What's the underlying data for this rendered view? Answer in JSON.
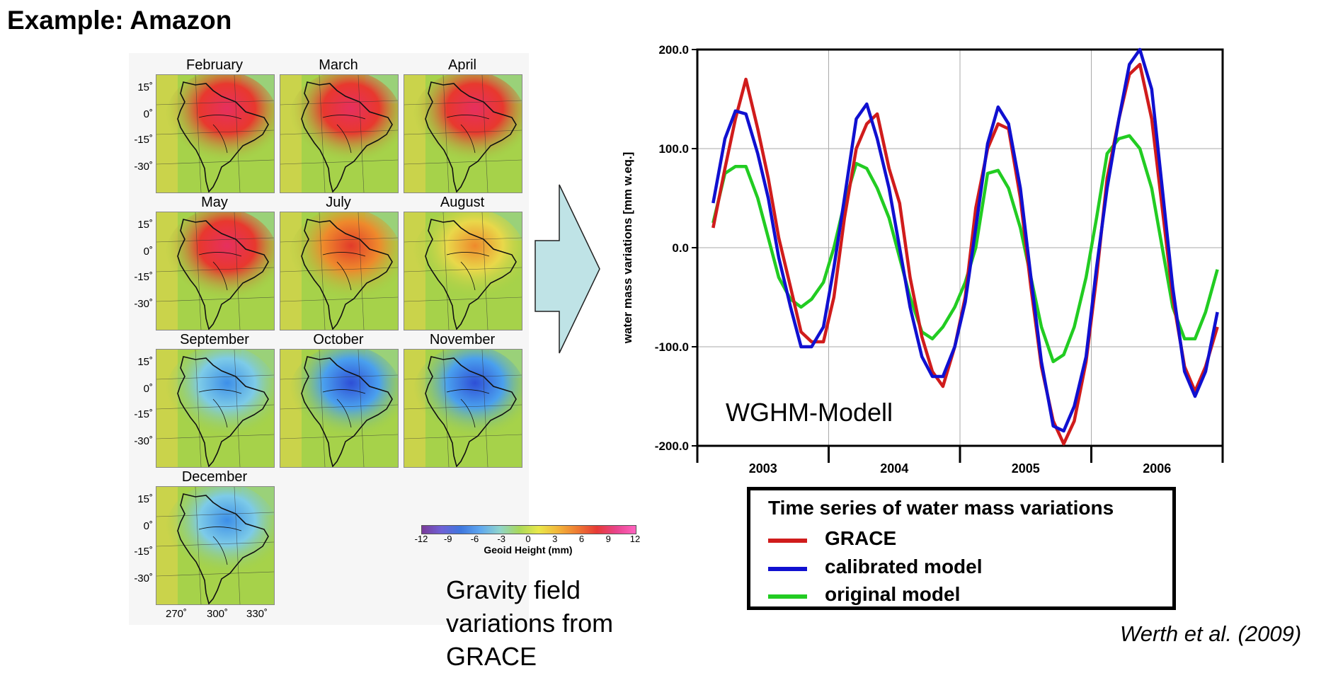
{
  "slide": {
    "title": "Example: Amazon",
    "citation": "Werth et al. (2009)"
  },
  "maps": {
    "months": [
      "February",
      "March",
      "April",
      "May",
      "July",
      "August",
      "September",
      "October",
      "November",
      "December"
    ],
    "anomaly_levels": [
      0.85,
      0.95,
      1.0,
      0.95,
      0.55,
      0.2,
      -0.55,
      -0.95,
      -1.0,
      -0.55
    ],
    "lat_labels": [
      "15˚",
      "0˚",
      "-15˚",
      "-30˚"
    ],
    "lon_labels": [
      "270˚",
      "300˚",
      "330˚"
    ],
    "colorbar": {
      "ticks": [
        "-12",
        "-9",
        "-6",
        "-3",
        "0",
        "3",
        "6",
        "9",
        "12"
      ],
      "title": "Geoid Height (mm)"
    },
    "caption": "Gravity field variations from GRACE"
  },
  "chart_data": {
    "type": "line",
    "title": "",
    "ylabel": "water mass variations [mm w.eq.]",
    "xlabel": "",
    "ylim": [
      -200,
      200
    ],
    "xlim": [
      2002.5,
      2006.5
    ],
    "y_ticks": [
      "200.0",
      "100.0",
      "0.0",
      "-100.0",
      "-200.0"
    ],
    "x_tick_labels": [
      "2003",
      "2004",
      "2005",
      "2006"
    ],
    "grid": true,
    "annotation": "WGHM-Modell",
    "legend": {
      "title": "Time series of water mass variations",
      "placement": "below"
    },
    "series": [
      {
        "name": "GRACE",
        "color": "#d01c1c",
        "x": [
          2002.62,
          2002.71,
          2002.79,
          2002.87,
          2002.96,
          2003.04,
          2003.12,
          2003.21,
          2003.29,
          2003.37,
          2003.46,
          2003.54,
          2003.62,
          2003.71,
          2003.79,
          2003.87,
          2003.96,
          2004.04,
          2004.12,
          2004.21,
          2004.29,
          2004.37,
          2004.46,
          2004.54,
          2004.62,
          2004.71,
          2004.79,
          2004.87,
          2004.96,
          2005.04,
          2005.12,
          2005.21,
          2005.29,
          2005.37,
          2005.46,
          2005.54,
          2005.62,
          2005.71,
          2005.79,
          2005.87,
          2005.96,
          2006.04,
          2006.12,
          2006.21,
          2006.29,
          2006.37,
          2006.46
        ],
        "y": [
          20,
          80,
          130,
          170,
          120,
          70,
          10,
          -40,
          -85,
          -95,
          -95,
          -50,
          30,
          100,
          125,
          135,
          80,
          45,
          -30,
          -90,
          -125,
          -140,
          -100,
          -50,
          40,
          100,
          125,
          120,
          50,
          -40,
          -120,
          -175,
          -198,
          -175,
          -115,
          -30,
          70,
          130,
          175,
          185,
          130,
          40,
          -50,
          -120,
          -145,
          -120,
          -80
        ]
      },
      {
        "name": "calibrated model",
        "color": "#1010d0",
        "x": [
          2002.62,
          2002.71,
          2002.79,
          2002.87,
          2002.96,
          2003.04,
          2003.12,
          2003.21,
          2003.29,
          2003.37,
          2003.46,
          2003.54,
          2003.62,
          2003.71,
          2003.79,
          2003.87,
          2003.96,
          2004.04,
          2004.12,
          2004.21,
          2004.29,
          2004.37,
          2004.46,
          2004.54,
          2004.62,
          2004.71,
          2004.79,
          2004.87,
          2004.96,
          2005.04,
          2005.12,
          2005.21,
          2005.29,
          2005.37,
          2005.46,
          2005.54,
          2005.62,
          2005.71,
          2005.79,
          2005.87,
          2005.96,
          2006.04,
          2006.12,
          2006.21,
          2006.29,
          2006.37,
          2006.46
        ],
        "y": [
          45,
          110,
          138,
          135,
          95,
          50,
          -10,
          -60,
          -100,
          -100,
          -80,
          -20,
          50,
          130,
          145,
          110,
          60,
          0,
          -60,
          -110,
          -130,
          -130,
          -100,
          -55,
          20,
          105,
          142,
          125,
          60,
          -30,
          -115,
          -180,
          -185,
          -160,
          -110,
          -20,
          60,
          130,
          185,
          200,
          160,
          60,
          -40,
          -125,
          -150,
          -125,
          -65
        ]
      },
      {
        "name": "original model",
        "color": "#22cc22",
        "x": [
          2002.62,
          2002.71,
          2002.79,
          2002.87,
          2002.96,
          2003.04,
          2003.12,
          2003.21,
          2003.29,
          2003.37,
          2003.46,
          2003.54,
          2003.62,
          2003.71,
          2003.79,
          2003.87,
          2003.96,
          2004.04,
          2004.12,
          2004.21,
          2004.29,
          2004.37,
          2004.46,
          2004.54,
          2004.62,
          2004.71,
          2004.79,
          2004.87,
          2004.96,
          2005.04,
          2005.12,
          2005.21,
          2005.29,
          2005.37,
          2005.46,
          2005.54,
          2005.62,
          2005.71,
          2005.79,
          2005.87,
          2005.96,
          2006.04,
          2006.12,
          2006.21,
          2006.29,
          2006.37,
          2006.46
        ],
        "y": [
          25,
          75,
          82,
          82,
          50,
          10,
          -30,
          -52,
          -60,
          -52,
          -35,
          0,
          45,
          85,
          80,
          60,
          30,
          -10,
          -50,
          -85,
          -92,
          -80,
          -60,
          -35,
          0,
          75,
          78,
          60,
          20,
          -30,
          -80,
          -115,
          -108,
          -80,
          -30,
          30,
          95,
          110,
          113,
          100,
          60,
          0,
          -60,
          -92,
          -92,
          -65,
          -22
        ]
      }
    ]
  }
}
